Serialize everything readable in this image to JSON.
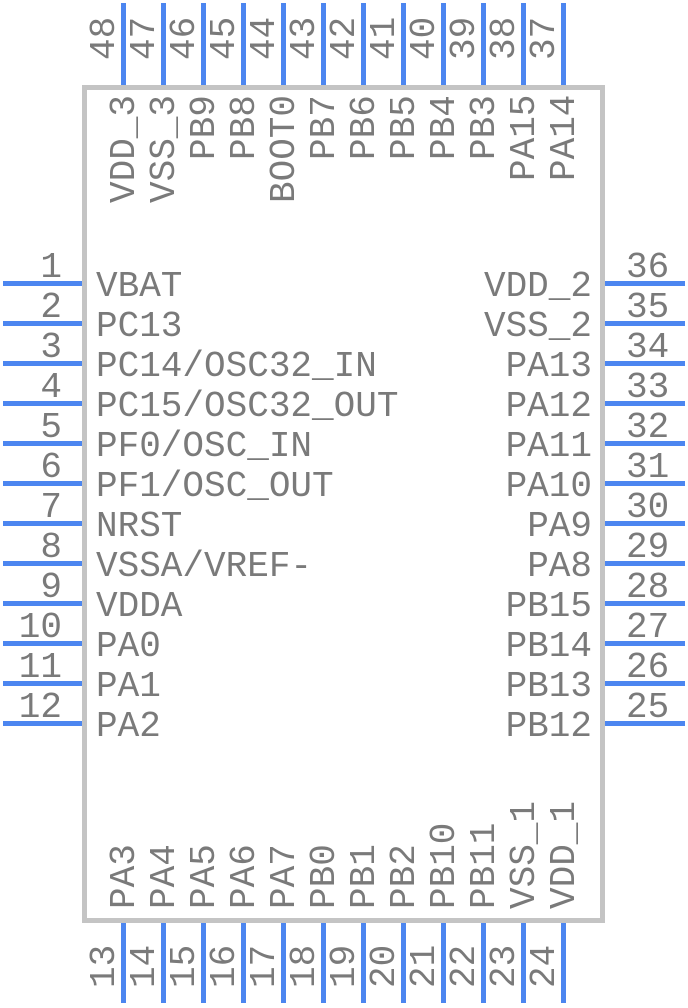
{
  "colors": {
    "pin_line": "#4C86F0",
    "label_text": "#7A7A7A",
    "body_border": "#C4C4C4",
    "body_fill": "#FFFFFF",
    "background": "#FFFFFF"
  },
  "pins": {
    "top": [
      {
        "number": "48",
        "name": "VDD_3"
      },
      {
        "number": "47",
        "name": "VSS_3"
      },
      {
        "number": "46",
        "name": "PB9"
      },
      {
        "number": "45",
        "name": "PB8"
      },
      {
        "number": "44",
        "name": "BOOT0"
      },
      {
        "number": "43",
        "name": "PB7"
      },
      {
        "number": "42",
        "name": "PB6"
      },
      {
        "number": "41",
        "name": "PB5"
      },
      {
        "number": "40",
        "name": "PB4"
      },
      {
        "number": "39",
        "name": "PB3"
      },
      {
        "number": "38",
        "name": "PA15"
      },
      {
        "number": "37",
        "name": "PA14"
      }
    ],
    "left": [
      {
        "number": "1",
        "name": "VBAT"
      },
      {
        "number": "2",
        "name": "PC13"
      },
      {
        "number": "3",
        "name": "PC14/OSC32_IN"
      },
      {
        "number": "4",
        "name": "PC15/OSC32_OUT"
      },
      {
        "number": "5",
        "name": "PF0/OSC_IN"
      },
      {
        "number": "6",
        "name": "PF1/OSC_OUT"
      },
      {
        "number": "7",
        "name": "NRST"
      },
      {
        "number": "8",
        "name": "VSSA/VREF-"
      },
      {
        "number": "9",
        "name": "VDDA"
      },
      {
        "number": "10",
        "name": "PA0"
      },
      {
        "number": "11",
        "name": "PA1"
      },
      {
        "number": "12",
        "name": "PA2"
      }
    ],
    "right": [
      {
        "number": "36",
        "name": "VDD_2"
      },
      {
        "number": "35",
        "name": "VSS_2"
      },
      {
        "number": "34",
        "name": "PA13"
      },
      {
        "number": "33",
        "name": "PA12"
      },
      {
        "number": "32",
        "name": "PA11"
      },
      {
        "number": "31",
        "name": "PA10"
      },
      {
        "number": "30",
        "name": "PA9"
      },
      {
        "number": "29",
        "name": "PA8"
      },
      {
        "number": "28",
        "name": "PB15"
      },
      {
        "number": "27",
        "name": "PB14"
      },
      {
        "number": "26",
        "name": "PB13"
      },
      {
        "number": "25",
        "name": "PB12"
      }
    ],
    "bottom": [
      {
        "number": "13",
        "name": "PA3"
      },
      {
        "number": "14",
        "name": "PA4"
      },
      {
        "number": "15",
        "name": "PA5"
      },
      {
        "number": "16",
        "name": "PA6"
      },
      {
        "number": "17",
        "name": "PA7"
      },
      {
        "number": "18",
        "name": "PB0"
      },
      {
        "number": "19",
        "name": "PB1"
      },
      {
        "number": "20",
        "name": "PB2"
      },
      {
        "number": "21",
        "name": "PB10"
      },
      {
        "number": "22",
        "name": "PB11"
      },
      {
        "number": "23",
        "name": "VSS_1"
      },
      {
        "number": "24",
        "name": "VDD_1"
      }
    ]
  }
}
